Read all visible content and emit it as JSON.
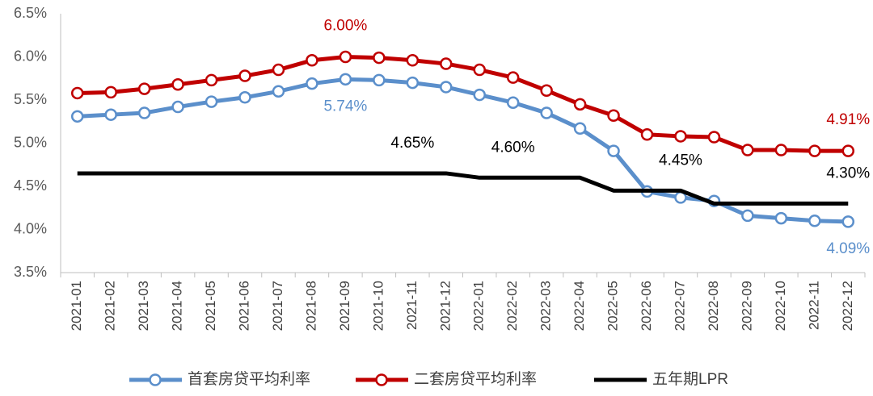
{
  "chart_data": {
    "type": "line",
    "categories": [
      "2021-01",
      "2021-02",
      "2021-03",
      "2021-04",
      "2021-05",
      "2021-06",
      "2021-07",
      "2021-08",
      "2021-09",
      "2021-10",
      "2021-11",
      "2021-12",
      "2022-01",
      "2022-02",
      "2022-03",
      "2022-04",
      "2022-05",
      "2022-06",
      "2022-07",
      "2022-08",
      "2022-09",
      "2022-10",
      "2022-11",
      "2022-12"
    ],
    "series": [
      {
        "name": "首套房贷平均利率",
        "color": "#5b8fcb",
        "marker": true,
        "values": [
          5.31,
          5.33,
          5.35,
          5.42,
          5.48,
          5.53,
          5.6,
          5.69,
          5.74,
          5.73,
          5.7,
          5.65,
          5.56,
          5.47,
          5.35,
          5.17,
          4.91,
          4.44,
          4.37,
          4.33,
          4.16,
          4.13,
          4.1,
          4.09
        ],
        "value_labels": [
          null,
          null,
          null,
          null,
          null,
          null,
          null,
          null,
          "5.74%",
          null,
          null,
          null,
          null,
          null,
          null,
          null,
          null,
          null,
          null,
          null,
          null,
          null,
          null,
          "4.09%"
        ]
      },
      {
        "name": "二套房贷平均利率",
        "color": "#c00000",
        "marker": true,
        "values": [
          5.58,
          5.59,
          5.63,
          5.68,
          5.73,
          5.78,
          5.85,
          5.96,
          6.0,
          5.99,
          5.96,
          5.92,
          5.85,
          5.76,
          5.61,
          5.45,
          5.32,
          5.1,
          5.08,
          5.07,
          4.92,
          4.92,
          4.91,
          4.91
        ],
        "value_labels": [
          null,
          null,
          null,
          null,
          null,
          null,
          null,
          null,
          "6.00%",
          null,
          null,
          null,
          null,
          null,
          null,
          null,
          null,
          null,
          null,
          null,
          null,
          null,
          null,
          "4.91%"
        ]
      },
      {
        "name": "五年期LPR",
        "color": "#000000",
        "marker": false,
        "values": [
          4.65,
          4.65,
          4.65,
          4.65,
          4.65,
          4.65,
          4.65,
          4.65,
          4.65,
          4.65,
          4.65,
          4.65,
          4.6,
          4.6,
          4.6,
          4.6,
          4.45,
          4.45,
          4.45,
          4.3,
          4.3,
          4.3,
          4.3,
          4.3
        ],
        "value_labels": [
          null,
          null,
          null,
          null,
          null,
          null,
          null,
          null,
          null,
          null,
          "4.65%",
          null,
          null,
          "4.60%",
          null,
          null,
          null,
          null,
          "4.45%",
          null,
          null,
          null,
          null,
          "4.30%"
        ]
      }
    ],
    "ylim": [
      3.5,
      6.5
    ],
    "yticks": [
      {
        "value": 3.5,
        "label": "3.5%"
      },
      {
        "value": 4.0,
        "label": "4.0%"
      },
      {
        "value": 4.5,
        "label": "4.5%"
      },
      {
        "value": 5.0,
        "label": "5.0%"
      },
      {
        "value": 5.5,
        "label": "5.5%"
      },
      {
        "value": 6.0,
        "label": "6.0%"
      },
      {
        "value": 6.5,
        "label": "6.5%"
      }
    ],
    "grid": false,
    "legend": "bottom"
  }
}
